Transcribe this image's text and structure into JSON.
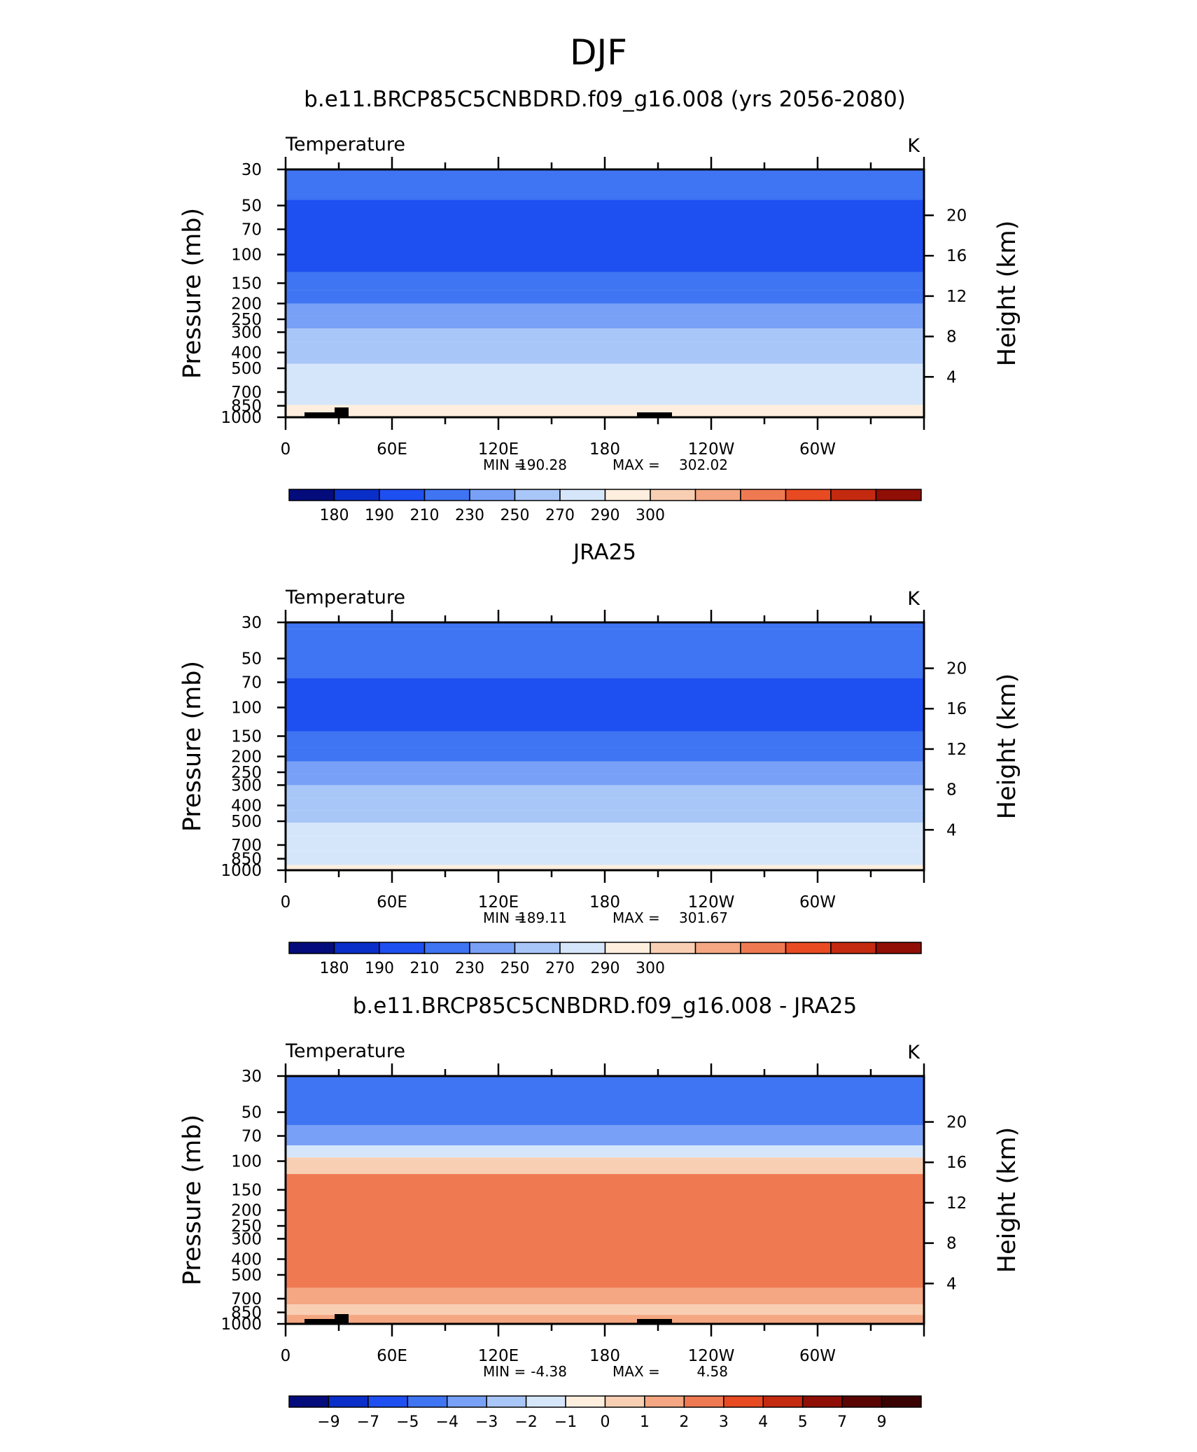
{
  "figure": {
    "title": "DJF"
  },
  "chart_data": [
    {
      "type": "heatmap",
      "title": "b.e11.BRCP85C5CNBDRD.f09_g16.008 (yrs 2056-2080)",
      "variable": "Temperature",
      "units": "K",
      "ylabel": "Pressure (mb)",
      "ylabel_right": "Height (km)",
      "x_ticks": [
        "0",
        "60E",
        "120E",
        "180",
        "120W",
        "60W"
      ],
      "y_ticks": [
        "30",
        "50",
        "70",
        "100",
        "150",
        "200",
        "250",
        "300",
        "400",
        "500",
        "700",
        "850",
        "1000"
      ],
      "y_right_ticks": [
        "20",
        "16",
        "12",
        "8",
        "4"
      ],
      "stats": {
        "min_label": "MIN =",
        "min": "190.28",
        "max_label": "MAX =",
        "max": "302.02"
      },
      "colorbar": {
        "labels": [
          "180",
          "190",
          "210",
          "230",
          "250",
          "270",
          "290",
          "300"
        ],
        "colors": [
          "#040c7c",
          "#0a2ec8",
          "#1e4ff0",
          "#3f74f2",
          "#78a0f6",
          "#a9c6f8",
          "#d6e6fa",
          "#fdeede",
          "#f9cfb4",
          "#f4a782",
          "#ef7a52",
          "#e84a22",
          "#c42a10",
          "#8f0e06"
        ]
      },
      "profile_bands": [
        {
          "from_mb": 30,
          "to_mb": 46,
          "value": 212
        },
        {
          "from_mb": 46,
          "to_mb": 128,
          "value": 206
        },
        {
          "from_mb": 128,
          "to_mb": 165,
          "value": 214
        },
        {
          "from_mb": 165,
          "to_mb": 200,
          "value": 222
        },
        {
          "from_mb": 200,
          "to_mb": 240,
          "value": 232
        },
        {
          "from_mb": 240,
          "to_mb": 285,
          "value": 240
        },
        {
          "from_mb": 285,
          "to_mb": 340,
          "value": 252
        },
        {
          "from_mb": 340,
          "to_mb": 400,
          "value": 258
        },
        {
          "from_mb": 400,
          "to_mb": 470,
          "value": 265
        },
        {
          "from_mb": 470,
          "to_mb": 560,
          "value": 272
        },
        {
          "from_mb": 560,
          "to_mb": 680,
          "value": 278
        },
        {
          "from_mb": 680,
          "to_mb": 840,
          "value": 285
        },
        {
          "from_mb": 840,
          "to_mb": 1000,
          "value": 291
        }
      ]
    },
    {
      "type": "heatmap",
      "title": "JRA25",
      "variable": "Temperature",
      "units": "K",
      "ylabel": "Pressure (mb)",
      "ylabel_right": "Height (km)",
      "x_ticks": [
        "0",
        "60E",
        "120E",
        "180",
        "120W",
        "60W"
      ],
      "y_ticks": [
        "30",
        "50",
        "70",
        "100",
        "150",
        "200",
        "250",
        "300",
        "400",
        "500",
        "700",
        "850",
        "1000"
      ],
      "y_right_ticks": [
        "20",
        "16",
        "12",
        "8",
        "4"
      ],
      "stats": {
        "min_label": "MIN =",
        "min": "189.11",
        "max_label": "MAX =",
        "max": "301.67"
      },
      "colorbar": {
        "labels": [
          "180",
          "190",
          "210",
          "230",
          "250",
          "270",
          "290",
          "300"
        ],
        "colors": [
          "#040c7c",
          "#0a2ec8",
          "#1e4ff0",
          "#3f74f2",
          "#78a0f6",
          "#a9c6f8",
          "#d6e6fa",
          "#fdeede",
          "#f9cfb4",
          "#f4a782",
          "#ef7a52",
          "#e84a22",
          "#c42a10",
          "#8f0e06"
        ]
      },
      "profile_bands": [
        {
          "from_mb": 30,
          "to_mb": 33,
          "value": 222
        },
        {
          "from_mb": 33,
          "to_mb": 66,
          "value": 212
        },
        {
          "from_mb": 66,
          "to_mb": 140,
          "value": 205
        },
        {
          "from_mb": 140,
          "to_mb": 175,
          "value": 214
        },
        {
          "from_mb": 175,
          "to_mb": 215,
          "value": 222
        },
        {
          "from_mb": 215,
          "to_mb": 255,
          "value": 232
        },
        {
          "from_mb": 255,
          "to_mb": 300,
          "value": 240
        },
        {
          "from_mb": 300,
          "to_mb": 360,
          "value": 252
        },
        {
          "from_mb": 360,
          "to_mb": 430,
          "value": 258
        },
        {
          "from_mb": 430,
          "to_mb": 510,
          "value": 265
        },
        {
          "from_mb": 510,
          "to_mb": 620,
          "value": 272
        },
        {
          "from_mb": 620,
          "to_mb": 760,
          "value": 278
        },
        {
          "from_mb": 760,
          "to_mb": 930,
          "value": 285
        },
        {
          "from_mb": 930,
          "to_mb": 1000,
          "value": 291
        }
      ]
    },
    {
      "type": "heatmap",
      "title": "b.e11.BRCP85C5CNBDRD.f09_g16.008 - JRA25",
      "variable": "Temperature",
      "units": "K",
      "ylabel": "Pressure (mb)",
      "ylabel_right": "Height (km)",
      "x_ticks": [
        "0",
        "60E",
        "120E",
        "180",
        "120W",
        "60W"
      ],
      "y_ticks": [
        "30",
        "50",
        "70",
        "100",
        "150",
        "200",
        "250",
        "300",
        "400",
        "500",
        "700",
        "850",
        "1000"
      ],
      "y_right_ticks": [
        "20",
        "16",
        "12",
        "8",
        "4"
      ],
      "stats": {
        "min_label": "MIN =",
        "min": "-4.38",
        "max_label": "MAX =",
        "max": "4.58"
      },
      "colorbar": {
        "labels": [
          "−9",
          "−7",
          "−5",
          "−4",
          "−3",
          "−2",
          "−1",
          "0",
          "1",
          "2",
          "3",
          "4",
          "5",
          "7",
          "9"
        ],
        "colors": [
          "#040c7c",
          "#0a2ec8",
          "#1e4ff0",
          "#3f74f2",
          "#78a0f6",
          "#a9c6f8",
          "#d6e6fa",
          "#fdeede",
          "#f9cfb4",
          "#f4a782",
          "#ef7a52",
          "#e84a22",
          "#c42a10",
          "#8f0e06",
          "#5a0404",
          "#3a0202"
        ]
      },
      "profile_bands": [
        {
          "from_mb": 30,
          "to_mb": 60,
          "value": -4.5
        },
        {
          "from_mb": 60,
          "to_mb": 80,
          "value": -3.5
        },
        {
          "from_mb": 80,
          "to_mb": 95,
          "value": -1.5
        },
        {
          "from_mb": 95,
          "to_mb": 120,
          "value": 0.5
        },
        {
          "from_mb": 120,
          "to_mb": 600,
          "value": 2.5
        },
        {
          "from_mb": 600,
          "to_mb": 760,
          "value": 1.5
        },
        {
          "from_mb": 760,
          "to_mb": 880,
          "value": 0.5
        },
        {
          "from_mb": 880,
          "to_mb": 1000,
          "value": 1.5
        }
      ]
    }
  ]
}
